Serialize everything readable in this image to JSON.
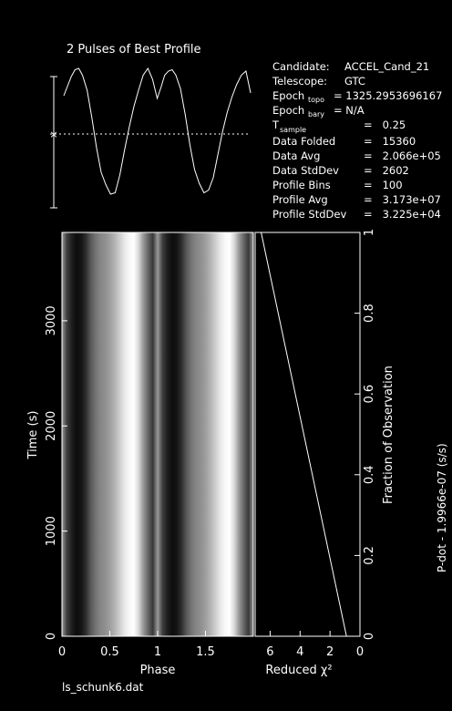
{
  "profile_title": "2 Pulses of Best Profile",
  "info": {
    "candidate_label": "Candidate:",
    "candidate": "ACCEL_Cand_21",
    "telescope_label": "Telescope:",
    "telescope": "GTC",
    "epoch_topo_label": "Epoch",
    "epoch_topo_sub": "topo",
    "epoch_topo": "= 1325.2953696167",
    "epoch_bary_label": "Epoch",
    "epoch_bary_sub": "bary",
    "epoch_bary": "= N/A",
    "t_sample_label": "T",
    "t_sample_sub": "sample",
    "t_sample": "=   0.25",
    "data_folded_label": "Data Folded",
    "data_folded": "=   15360",
    "data_avg_label": "Data Avg",
    "data_avg": "=   2.066e+05",
    "data_stddev_label": "Data StdDev",
    "data_stddev": "=   2602",
    "profile_bins_label": "Profile Bins",
    "profile_bins": "=   100",
    "profile_avg_label": "Profile Avg",
    "profile_avg": "=   3.173e+07",
    "profile_stddev_label": "Profile StdDev",
    "profile_stddev": "=   3.225e+04"
  },
  "footer_filename": "ls_schunk6.dat",
  "right_edge_label": "P-dot - 1.9966e-07 (s/s)",
  "colors": {
    "background": "#000000",
    "foreground": "#ffffff"
  },
  "chart_data": [
    {
      "type": "line",
      "title": "2 Pulses of Best Profile",
      "x": [
        0.0,
        0.04,
        0.08,
        0.12,
        0.16,
        0.2,
        0.25,
        0.3,
        0.35,
        0.4,
        0.45,
        0.5,
        0.55,
        0.6,
        0.65,
        0.7,
        0.75,
        0.8,
        0.85,
        0.9,
        0.95,
        1.0,
        1.04,
        1.08,
        1.12,
        1.16,
        1.2,
        1.25,
        1.3,
        1.35,
        1.4,
        1.45,
        1.5,
        1.55,
        1.6,
        1.65,
        1.7,
        1.75,
        1.8,
        1.85,
        1.9,
        1.95,
        2.0
      ],
      "y": [
        0.78,
        0.85,
        0.92,
        0.97,
        0.98,
        0.93,
        0.82,
        0.62,
        0.4,
        0.22,
        0.13,
        0.06,
        0.07,
        0.2,
        0.38,
        0.55,
        0.7,
        0.82,
        0.93,
        0.98,
        0.9,
        0.76,
        0.84,
        0.93,
        0.96,
        0.97,
        0.93,
        0.83,
        0.64,
        0.42,
        0.24,
        0.14,
        0.07,
        0.09,
        0.18,
        0.35,
        0.52,
        0.66,
        0.77,
        0.86,
        0.93,
        0.96,
        0.8
      ],
      "reference_line": 0.5
    },
    {
      "type": "heatmap",
      "xlabel": "Phase",
      "ylabel": "Time (s)",
      "xlim": [
        0,
        2
      ],
      "ylim": [
        0,
        3840
      ],
      "x_ticks": [
        "0",
        "0.5",
        "1",
        "1.5"
      ],
      "y_ticks": [
        "0",
        "1000",
        "2000",
        "3000"
      ],
      "phase": [
        0,
        0.05,
        0.1,
        0.15,
        0.2,
        0.25,
        0.3,
        0.35,
        0.4,
        0.45,
        0.5,
        0.55,
        0.6,
        0.65,
        0.7,
        0.75,
        0.8,
        0.85,
        0.9,
        0.95,
        1.0
      ],
      "intensity": [
        0.6,
        0.25,
        0.12,
        0.05,
        0.08,
        0.18,
        0.34,
        0.45,
        0.52,
        0.56,
        0.62,
        0.7,
        0.8,
        0.9,
        0.97,
        1.0,
        0.85,
        0.6,
        0.4,
        0.22,
        0.6
      ]
    },
    {
      "type": "line",
      "xlabel": "Reduced χ²",
      "x_ticks": [
        "6",
        "4",
        "2",
        "0"
      ],
      "xlim": [
        7,
        0
      ],
      "y2label": "Fraction of Observation",
      "y2_ticks": [
        "0",
        "0.2",
        "0.4",
        "0.6",
        "0.8",
        "1"
      ],
      "ylim": [
        0,
        1
      ],
      "x": [
        6.6,
        0.9
      ],
      "y": [
        1.0,
        0.0
      ]
    }
  ]
}
